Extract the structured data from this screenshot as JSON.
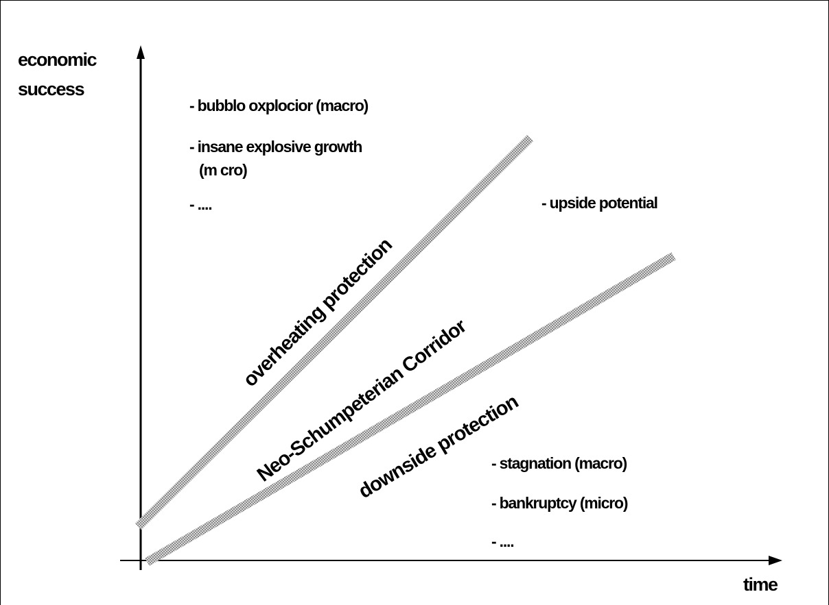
{
  "axes": {
    "y_label_line1": "economic",
    "y_label_line2": "success",
    "x_label": "time"
  },
  "bands": {
    "upper": "overheating protection",
    "corridor": "Neo-Schumpeterian Corridor",
    "lower": "downside protection"
  },
  "notes": {
    "above": [
      "- bubblo oxplocior (macro)",
      "- insane explosive growth",
      "(m cro)",
      "- ...."
    ],
    "right": "- upside potential",
    "below": [
      "- stagnation (macro)",
      "- bankruptcy (micro)",
      "- ...."
    ]
  },
  "colors": {
    "band": "#8a8a8a",
    "band_stripe": "#d9d9d9",
    "ink": "#000000"
  }
}
